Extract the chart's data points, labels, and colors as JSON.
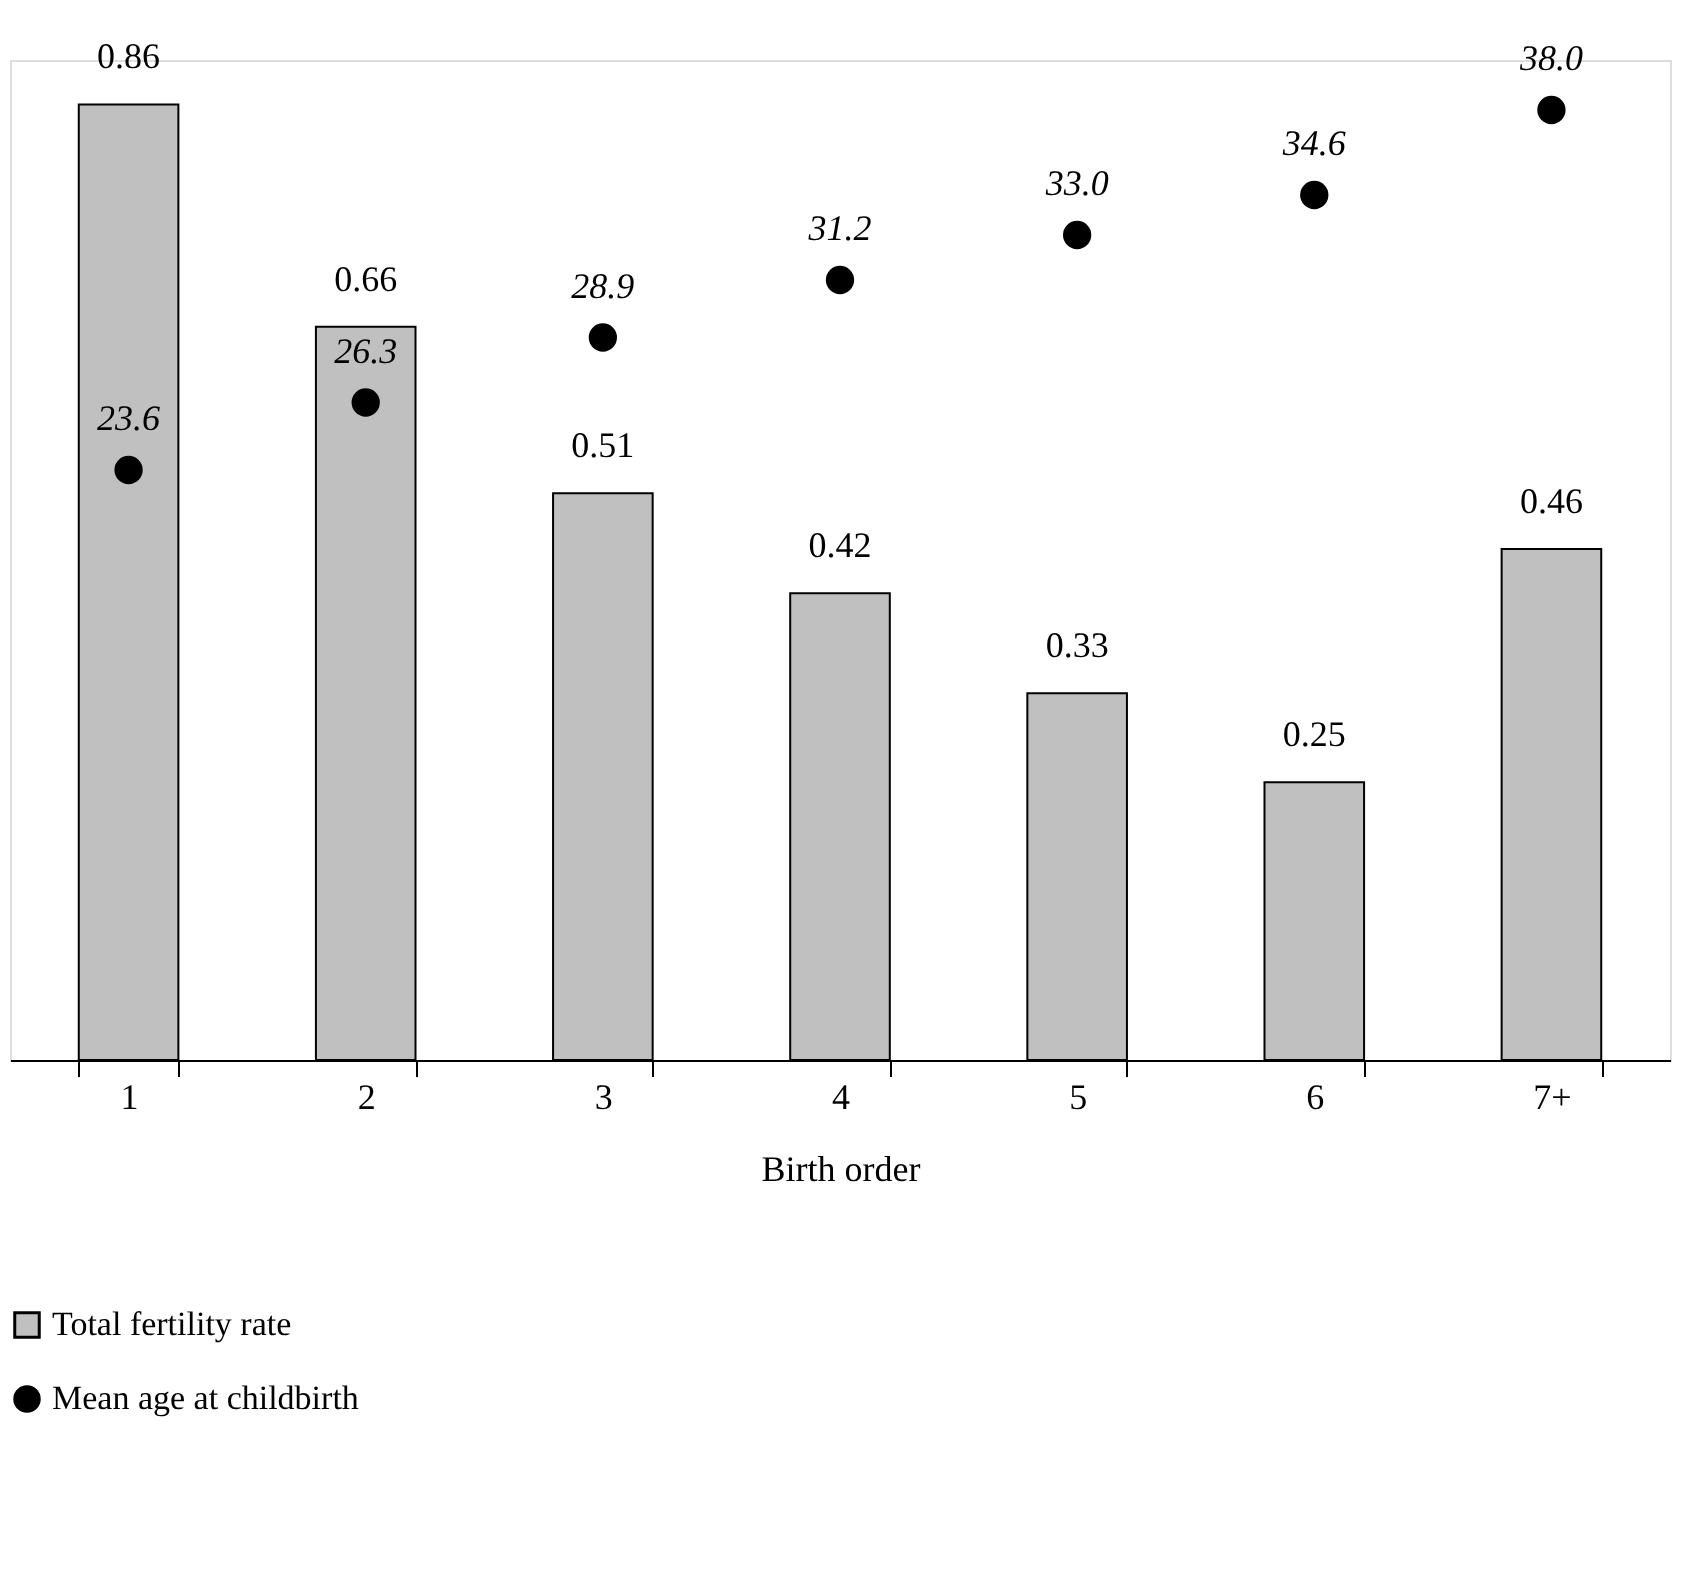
{
  "chart_data": {
    "type": "bar",
    "xlabel": "Birth order",
    "categories": [
      "1",
      "2",
      "3",
      "4",
      "5",
      "6",
      "7+"
    ],
    "series": [
      {
        "name": "Total fertility rate",
        "color": "#c0c0c0",
        "values": [
          0.86,
          0.66,
          0.51,
          0.42,
          0.33,
          0.25,
          0.46
        ]
      },
      {
        "name": "Mean age at childbirth",
        "type": "scatter",
        "axis": "y2",
        "color": "#000000",
        "marker": "circle",
        "values": [
          23.6,
          26.3,
          28.9,
          31.2,
          33.0,
          34.6,
          38.0
        ],
        "value_labels": [
          "23.6",
          "26.3",
          "28.9",
          "31.2",
          "33.0",
          "34.6",
          "38.0"
        ]
      }
    ],
    "tick_labels": "x",
    "data_labels": true,
    "legend": "bottom left",
    "grid": false
  }
}
